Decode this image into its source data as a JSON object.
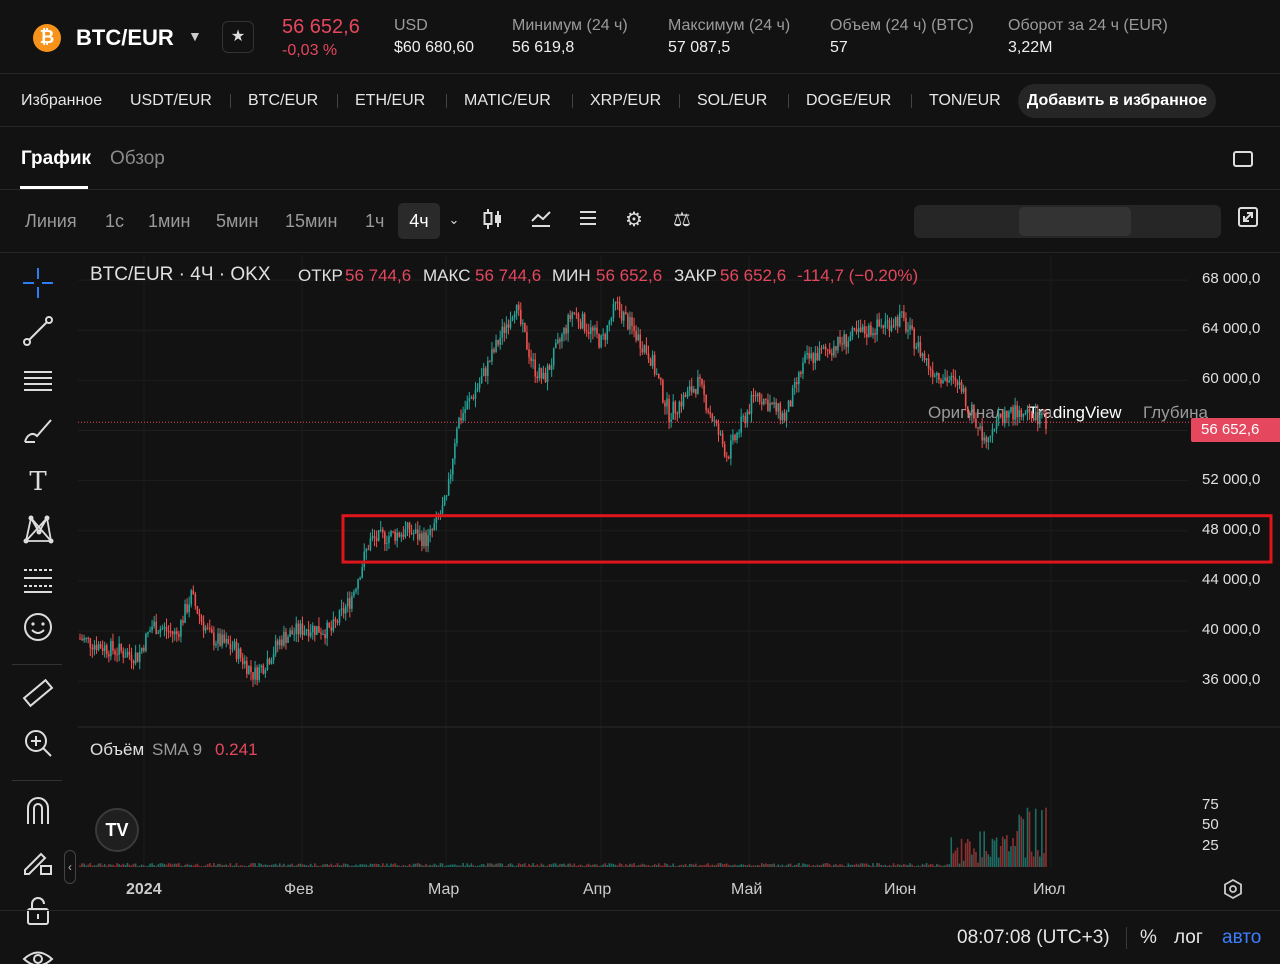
{
  "header": {
    "coin_icon": "bitcoin-icon",
    "pair": "BTC/EUR",
    "price": "56 652,6",
    "change": "-0,03 %",
    "usd_label": "USD",
    "usd_value": "$60 680,60",
    "low_label": "Минимум (24 ч)",
    "low_value": "56 619,8",
    "high_label": "Максимум (24 ч)",
    "high_value": "57 087,5",
    "vol_label": "Объем (24 ч) (BTC)",
    "vol_value": "57",
    "turnover_label": "Оборот за 24 ч (EUR)",
    "turnover_value": "3,22M"
  },
  "favorites": {
    "title": "Избранное",
    "items": [
      "USDT/EUR",
      "BTC/EUR",
      "ETH/EUR",
      "MATIC/EUR",
      "XRP/EUR",
      "SOL/EUR",
      "DOGE/EUR",
      "TON/EUR"
    ],
    "add_label": "Добавить в избранное"
  },
  "tabs": [
    "График",
    "Обзор"
  ],
  "toolbar": {
    "timeframes": [
      "Линия",
      "1с",
      "1мин",
      "5мин",
      "15мин",
      "1ч",
      "4ч"
    ],
    "active_timeframe": "4ч",
    "views": [
      "Оригинал",
      "TradingView",
      "Глубина"
    ],
    "active_view": "TradingView"
  },
  "legend": {
    "symbol": "BTC/EUR · 4Ч · OKX",
    "open_label": "ОТКР",
    "open": "56 744,6",
    "high_label": "МАКС",
    "high": "56 744,6",
    "low_label": "МИН",
    "low": "56 652,6",
    "close_label": "ЗАКР",
    "close": "56 652,6",
    "change": "-114,7 (−0.20%)",
    "volume_label": "Объём",
    "sma_label": "SMA 9",
    "sma_value": "0.241"
  },
  "price_tag": "56 652,6",
  "footer": {
    "time": "08:07:08 (UTC+3)",
    "percent": "%",
    "log": "лог",
    "auto": "авто"
  },
  "colors": {
    "up": "#26a69a",
    "down": "#ef5350",
    "accent": "#e5475e",
    "highlight": "#e0151b",
    "auto": "#3d7eff"
  },
  "chart_data": {
    "type": "candlestick",
    "y_ticks": [
      "68 000,0",
      "64 000,0",
      "60 000,0",
      "56 000,0",
      "52 000,0",
      "48 000,0",
      "44 000,0",
      "40 000,0",
      "36 000,0"
    ],
    "y_tick_values": [
      68000,
      64000,
      60000,
      56000,
      52000,
      48000,
      44000,
      40000,
      36000
    ],
    "ylim": [
      32500,
      70000
    ],
    "x_ticks": [
      "2024",
      "Фев",
      "Мар",
      "Апр",
      "Май",
      "Июн",
      "Июл"
    ],
    "price_path": [
      {
        "t": 0,
        "p": 39400
      },
      {
        "t": 0.03,
        "p": 38600
      },
      {
        "t": 0.06,
        "p": 38000
      },
      {
        "t": 0.075,
        "p": 40500
      },
      {
        "t": 0.1,
        "p": 39700
      },
      {
        "t": 0.115,
        "p": 42800
      },
      {
        "t": 0.125,
        "p": 41000
      },
      {
        "t": 0.135,
        "p": 39500
      },
      {
        "t": 0.16,
        "p": 38600
      },
      {
        "t": 0.18,
        "p": 36500
      },
      {
        "t": 0.19,
        "p": 37300
      },
      {
        "t": 0.21,
        "p": 39500
      },
      {
        "t": 0.235,
        "p": 40300
      },
      {
        "t": 0.26,
        "p": 40000
      },
      {
        "t": 0.28,
        "p": 42500
      },
      {
        "t": 0.3,
        "p": 47200
      },
      {
        "t": 0.34,
        "p": 48000
      },
      {
        "t": 0.36,
        "p": 47200
      },
      {
        "t": 0.38,
        "p": 50500
      },
      {
        "t": 0.39,
        "p": 56500
      },
      {
        "t": 0.415,
        "p": 60000
      },
      {
        "t": 0.45,
        "p": 66000
      },
      {
        "t": 0.47,
        "p": 61000
      },
      {
        "t": 0.48,
        "p": 60000
      },
      {
        "t": 0.51,
        "p": 65500
      },
      {
        "t": 0.54,
        "p": 63000
      },
      {
        "t": 0.555,
        "p": 66000
      },
      {
        "t": 0.59,
        "p": 62000
      },
      {
        "t": 0.61,
        "p": 57300
      },
      {
        "t": 0.64,
        "p": 59800
      },
      {
        "t": 0.67,
        "p": 54000
      },
      {
        "t": 0.7,
        "p": 59000
      },
      {
        "t": 0.73,
        "p": 57000
      },
      {
        "t": 0.75,
        "p": 61500
      },
      {
        "t": 0.8,
        "p": 63500
      },
      {
        "t": 0.85,
        "p": 65000
      },
      {
        "t": 0.88,
        "p": 61000
      },
      {
        "t": 0.91,
        "p": 59500
      },
      {
        "t": 0.935,
        "p": 55500
      },
      {
        "t": 0.96,
        "p": 57500
      },
      {
        "t": 1,
        "p": 56652.6
      }
    ],
    "highlight_band": [
      45500,
      49200
    ],
    "volume_ticks": [
      "75",
      "50",
      "25"
    ],
    "volume_tick_values": [
      75,
      50,
      25
    ]
  }
}
